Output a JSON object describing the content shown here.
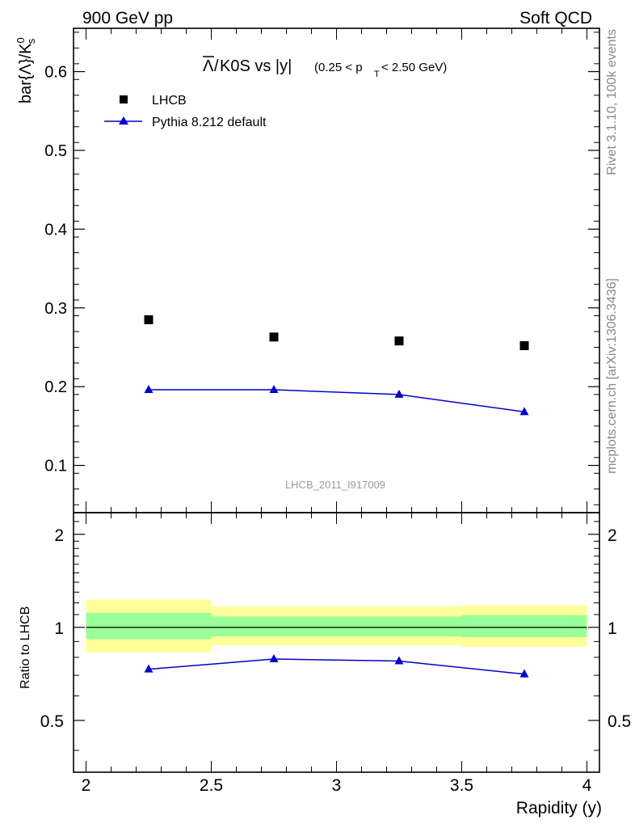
{
  "header": {
    "left": "900 GeV pp",
    "right": "Soft QCD"
  },
  "side_text": {
    "top": "Rivet 3.1.10,  100k events",
    "bottom": "mcplots.cern.ch [arXiv:1306.3436]"
  },
  "watermark": "LHCB_2011_I917009",
  "colors": {
    "mc": "#0000cc",
    "data": "#000000",
    "band_inner": "#99ff99",
    "band_outer": "#ffff99"
  },
  "chart_data": [
    {
      "type": "scatter",
      "title": {
        "main": "K0S vs |y|",
        "cut": "(0.25 < p",
        "cut_sub": "T",
        "cut_end": " < 2.50 GeV)",
        "lambda_symbol": "Λ",
        "slash": "/"
      },
      "ylabel": {
        "main": "bar{Λ}/K",
        "sup": "0",
        "sub": "s"
      },
      "xlim": [
        1.95,
        4.05
      ],
      "ylim": [
        0.04,
        0.655
      ],
      "yticks": [
        0.1,
        0.2,
        0.3,
        0.4,
        0.5,
        0.6
      ],
      "ytick_labels": [
        "0.1",
        "0.2",
        "0.3",
        "0.4",
        "0.5",
        "0.6"
      ],
      "legend": {
        "position": "top-left",
        "entries": [
          "LHCB",
          "Pythia 8.212 default"
        ]
      },
      "series": [
        {
          "name": "LHCB",
          "x": [
            2.25,
            2.75,
            3.25,
            3.75
          ],
          "y": [
            0.285,
            0.263,
            0.258,
            0.252
          ]
        },
        {
          "name": "Pythia 8.212 default",
          "x": [
            2.25,
            2.75,
            3.25,
            3.75
          ],
          "y": [
            0.196,
            0.196,
            0.19,
            0.168
          ],
          "yerr": [
            0.004,
            0.004,
            0.004,
            0.004
          ]
        }
      ]
    },
    {
      "type": "line",
      "ylabel": "Ratio to LHCB",
      "xlabel": "Rapidity (y)",
      "xlim": [
        1.95,
        4.05
      ],
      "ylim": [
        0.34,
        2.35
      ],
      "xticks": [
        2,
        2.5,
        3,
        3.5,
        4
      ],
      "xtick_labels": [
        "2",
        "2.5",
        "3",
        "3.5",
        "4"
      ],
      "yticks": [
        0.5,
        1,
        2
      ],
      "ytick_labels": [
        "0.5",
        "1",
        "2"
      ],
      "bands": [
        {
          "x": [
            2.0,
            2.5
          ],
          "inner": [
            0.915,
            1.115
          ],
          "outer": [
            0.83,
            1.23
          ]
        },
        {
          "x": [
            2.5,
            3.5
          ],
          "inner": [
            0.935,
            1.085
          ],
          "outer": [
            0.875,
            1.17
          ]
        },
        {
          "x": [
            3.5,
            4.0
          ],
          "inner": [
            0.93,
            1.095
          ],
          "outer": [
            0.865,
            1.18
          ]
        }
      ],
      "series": [
        {
          "name": "Pythia 8.212 default",
          "x": [
            2.25,
            2.75,
            3.25,
            3.75
          ],
          "y": [
            0.732,
            0.79,
            0.778,
            0.706
          ],
          "yerr": [
            0.014,
            0.014,
            0.016,
            0.018
          ]
        }
      ]
    }
  ]
}
